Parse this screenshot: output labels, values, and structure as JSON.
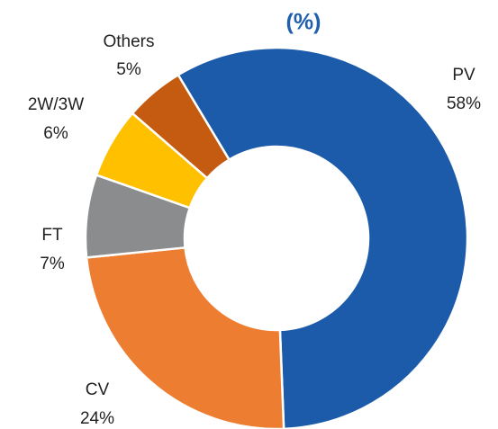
{
  "chart_data": {
    "type": "donut",
    "title": "(%)",
    "categories": [
      "PV",
      "CV",
      "FT",
      "2W/3W",
      "Others"
    ],
    "values": [
      58,
      24,
      7,
      6,
      5
    ],
    "value_labels": [
      "58%",
      "24%",
      "7%",
      "6%",
      "5%"
    ],
    "colors": [
      "#1c5ba9",
      "#ed7d31",
      "#8b8c8e",
      "#ffc000",
      "#c55a11"
    ]
  }
}
